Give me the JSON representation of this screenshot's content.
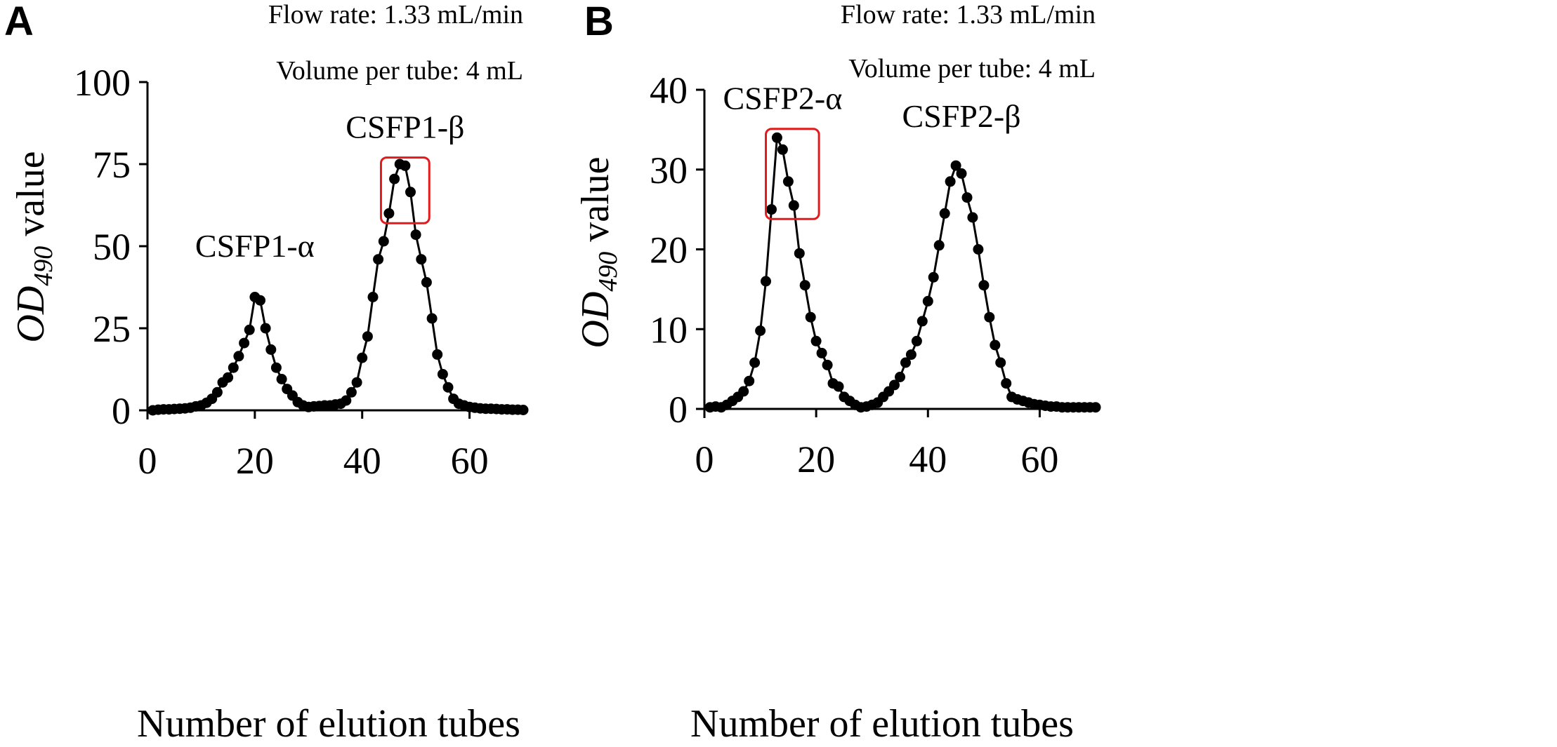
{
  "colors": {
    "axis": "#000000",
    "line": "#000000",
    "marker": "#000000",
    "highlight": "#e31a1c",
    "background": "#ffffff"
  },
  "chart_data": [
    {
      "panel_letter": "A",
      "type": "line",
      "title": "",
      "annotations": {
        "flow_rate": "Flow rate: 1.33 mL/min",
        "volume": "Volume per tube: 4 mL"
      },
      "xlabel": "Number of elution tubes",
      "ylabel_main": "OD",
      "ylabel_sub": "490",
      "ylabel_rest": " value",
      "xlim": [
        0,
        70
      ],
      "ylim": [
        0,
        100
      ],
      "xticks": [
        0,
        20,
        40,
        60
      ],
      "yticks": [
        0,
        25,
        50,
        75,
        100
      ],
      "peak_labels": [
        {
          "text": "CSFP1-α",
          "x": 20,
          "y": 35
        },
        {
          "text": "CSFP1-β",
          "x": 48,
          "y": 75
        }
      ],
      "highlight_box": {
        "x_range": [
          43.5,
          52.5
        ],
        "y_range": [
          57,
          77
        ]
      },
      "series": [
        {
          "name": "OD490",
          "x": [
            1,
            2,
            3,
            4,
            5,
            6,
            7,
            8,
            9,
            10,
            11,
            12,
            13,
            14,
            15,
            16,
            17,
            18,
            19,
            20,
            21,
            22,
            23,
            24,
            25,
            26,
            27,
            28,
            29,
            30,
            31,
            32,
            33,
            34,
            35,
            36,
            37,
            38,
            39,
            40,
            41,
            42,
            43,
            44,
            45,
            46,
            47,
            48,
            49,
            50,
            51,
            52,
            53,
            54,
            55,
            56,
            57,
            58,
            59,
            60,
            61,
            62,
            63,
            64,
            65,
            66,
            67,
            68,
            69,
            70
          ],
          "y": [
            0,
            0.2,
            0.3,
            0.3,
            0.4,
            0.5,
            0.6,
            0.8,
            1.2,
            1.5,
            2.3,
            3.5,
            5.5,
            8.5,
            10,
            13,
            16.5,
            20.5,
            24.5,
            34.5,
            33.5,
            25,
            18.5,
            13,
            9.5,
            6.5,
            4.5,
            2.5,
            1.5,
            1,
            1.2,
            1.3,
            1.5,
            1.5,
            1.8,
            2,
            3,
            5.5,
            8.5,
            16,
            22.5,
            34.5,
            46,
            51.5,
            60,
            70.5,
            75,
            74.5,
            66.5,
            53.5,
            46,
            39,
            28,
            17,
            11,
            7,
            3.5,
            2,
            1.5,
            1,
            0.8,
            0.6,
            0.5,
            0.5,
            0.4,
            0.3,
            0.3,
            0.2,
            0.2,
            0.1
          ]
        }
      ]
    },
    {
      "panel_letter": "B",
      "type": "line",
      "title": "",
      "annotations": {
        "flow_rate": "Flow rate: 1.33 mL/min",
        "volume": "Volume per tube: 4 mL"
      },
      "xlabel": "Number of elution tubes",
      "ylabel_main": "OD",
      "ylabel_sub": "490",
      "ylabel_rest": " value",
      "xlim": [
        0,
        70
      ],
      "ylim": [
        0,
        40
      ],
      "xticks": [
        0,
        20,
        40,
        60
      ],
      "yticks": [
        0,
        10,
        20,
        30,
        40
      ],
      "peak_labels": [
        {
          "text": "CSFP2-α",
          "x": 14,
          "y": 34
        },
        {
          "text": "CSFP2-β",
          "x": 46,
          "y": 30.5
        }
      ],
      "highlight_box": {
        "x_range": [
          11,
          20.5
        ],
        "y_range": [
          23.8,
          35.1
        ]
      },
      "series": [
        {
          "name": "OD490",
          "x": [
            1,
            2,
            3,
            4,
            5,
            6,
            7,
            8,
            9,
            10,
            11,
            12,
            13,
            14,
            15,
            16,
            17,
            18,
            19,
            20,
            21,
            22,
            23,
            24,
            25,
            26,
            27,
            28,
            29,
            30,
            31,
            32,
            33,
            34,
            35,
            36,
            37,
            38,
            39,
            40,
            41,
            42,
            43,
            44,
            45,
            46,
            47,
            48,
            49,
            50,
            51,
            52,
            53,
            54,
            55,
            56,
            57,
            58,
            59,
            60,
            61,
            62,
            63,
            64,
            65,
            66,
            67,
            68,
            69,
            70
          ],
          "y": [
            0.2,
            0.3,
            0.2,
            0.5,
            1,
            1.5,
            2.2,
            3.5,
            5.8,
            9.8,
            16,
            25,
            34,
            32.5,
            28.5,
            25.5,
            19.5,
            15.5,
            11.5,
            8.5,
            7,
            5.5,
            3.2,
            2.8,
            1.5,
            1,
            0.5,
            0.2,
            0.3,
            0.5,
            0.8,
            1.5,
            2.2,
            3,
            4,
            5.8,
            6.8,
            8.5,
            11,
            13.5,
            16.5,
            20.5,
            24.5,
            28.5,
            30.5,
            29.5,
            26.5,
            24,
            20,
            15.5,
            11.5,
            8,
            5.8,
            3.2,
            1.5,
            1.2,
            1,
            0.8,
            0.6,
            0.5,
            0.4,
            0.3,
            0.3,
            0.2,
            0.2,
            0.2,
            0.2,
            0.2,
            0.2,
            0.2
          ]
        }
      ]
    }
  ]
}
